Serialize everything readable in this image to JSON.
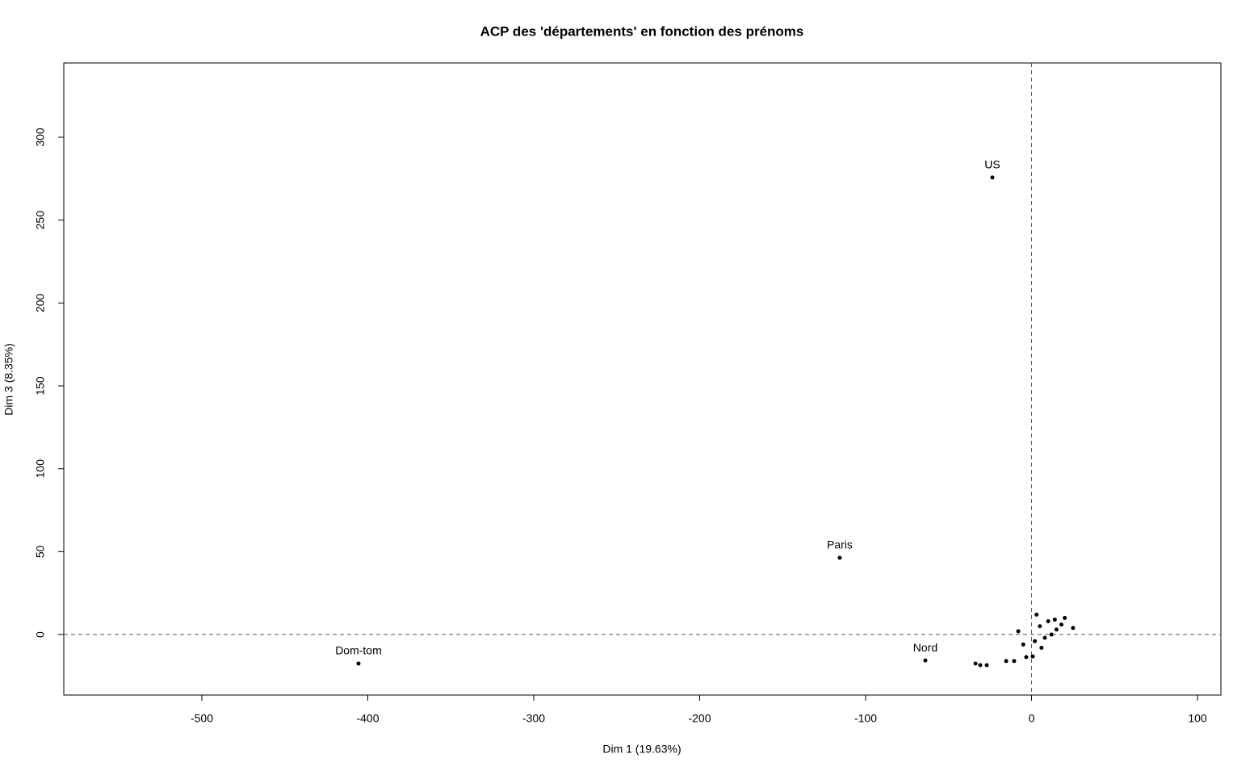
{
  "chart_data": {
    "type": "scatter",
    "title": "ACP des 'départements' en fonction des prénoms",
    "x_label": "Dim 1 (19.63%)",
    "y_label": "Dim 3 (8.35%)",
    "labels": [
      "US",
      "Paris",
      "Dom-tom",
      "Nord",
      null,
      null,
      null,
      null,
      null,
      null,
      null,
      null,
      null,
      null,
      null,
      null,
      null,
      null,
      null,
      null,
      null,
      null,
      null,
      null,
      null
    ],
    "x": [
      -23.6,
      -115.6,
      -405.6,
      -64,
      -33.8,
      -30.9,
      -27,
      -15.3,
      -10.5,
      -3.2,
      0.7,
      5,
      10,
      15,
      20,
      8,
      12,
      3,
      -5,
      18,
      25,
      6,
      -8,
      14,
      2
    ],
    "y": [
      275.7,
      46.3,
      -17.5,
      -15.6,
      -17.5,
      -18.5,
      -18.5,
      -16,
      -16,
      -13.6,
      -13.2,
      5,
      8,
      3,
      10,
      -2,
      0,
      12,
      -6,
      6,
      4,
      -8,
      2,
      9,
      -4
    ],
    "color": "#000000",
    "xlim": [
      -583.2,
      114.1
    ],
    "ylim": [
      -36.5,
      344.8
    ],
    "xticks": [
      -500,
      -400,
      -300,
      -200,
      -100,
      0,
      100
    ],
    "yticks": [
      0,
      50,
      100,
      150,
      200,
      250,
      300
    ],
    "reference_lines": {
      "x": 0,
      "y": 0
    }
  }
}
